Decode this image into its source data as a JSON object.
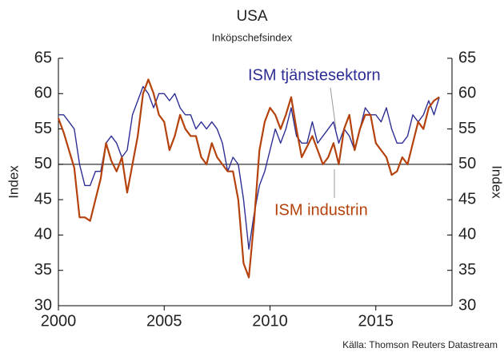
{
  "chart_data": {
    "type": "line",
    "title": "USA",
    "subtitle": "Inköpschefsindex",
    "ylabel": "Index",
    "y2label": "Index",
    "source": "Källa: Thomson Reuters Datastream",
    "x": [
      2000,
      2000.25,
      2000.5,
      2000.75,
      2001,
      2001.25,
      2001.5,
      2001.75,
      2002,
      2002.25,
      2002.5,
      2002.75,
      2003,
      2003.25,
      2003.5,
      2003.75,
      2004,
      2004.25,
      2004.5,
      2004.75,
      2005,
      2005.25,
      2005.5,
      2005.75,
      2006,
      2006.25,
      2006.5,
      2006.75,
      2007,
      2007.25,
      2007.5,
      2007.75,
      2008,
      2008.25,
      2008.5,
      2008.75,
      2009,
      2009.25,
      2009.5,
      2009.75,
      2010,
      2010.25,
      2010.5,
      2010.75,
      2011,
      2011.25,
      2011.5,
      2011.75,
      2012,
      2012.25,
      2012.5,
      2012.75,
      2013,
      2013.25,
      2013.5,
      2013.75,
      2014,
      2014.25,
      2014.5,
      2014.75,
      2015,
      2015.25,
      2015.5,
      2015.75,
      2016,
      2016.25,
      2016.5,
      2016.75,
      2017,
      2017.25,
      2017.5,
      2017.75,
      2018
    ],
    "series": [
      {
        "name": "ISM tjänstesektorn",
        "color": "#2e2e94",
        "values": [
          57,
          57,
          56,
          55,
          50,
          47,
          47,
          49,
          49,
          53,
          54,
          53,
          51,
          52,
          57,
          59,
          61,
          60,
          58,
          60,
          60,
          59,
          60,
          58,
          57,
          57,
          55,
          56,
          55,
          56,
          55,
          53,
          49,
          51,
          50,
          45,
          38,
          43,
          47,
          49,
          52,
          55,
          53,
          55,
          58,
          54,
          53,
          53,
          56,
          53,
          54,
          55,
          56,
          53,
          55,
          54,
          52,
          55,
          58,
          57,
          57,
          56,
          58,
          55,
          53,
          53,
          54,
          57,
          56,
          57,
          59,
          57,
          59.5
        ]
      },
      {
        "name": "ISM industrin",
        "color": "#b5420c",
        "values": [
          56.5,
          54.5,
          52,
          49.5,
          42.5,
          42.5,
          42,
          45,
          48,
          53,
          50.5,
          49,
          51,
          46,
          50,
          54,
          60,
          62,
          60,
          57,
          56,
          52,
          54,
          57,
          55,
          54,
          54,
          51,
          50,
          53,
          51,
          50,
          49,
          49,
          45,
          36,
          34,
          42,
          52,
          56,
          58,
          57,
          55,
          57,
          59.5,
          55,
          51,
          52.5,
          54,
          52,
          50,
          51,
          53,
          50,
          55,
          57,
          52,
          55,
          57,
          57,
          53,
          52,
          51,
          48.5,
          49,
          51,
          50,
          53,
          56,
          55,
          58,
          59,
          59.5
        ]
      }
    ],
    "xlim": [
      2000,
      2018.6
    ],
    "xticks": [
      2000,
      2005,
      2010,
      2015
    ],
    "ylim": [
      30,
      65
    ],
    "yticks": [
      30,
      35,
      40,
      45,
      50,
      55,
      60,
      65
    ],
    "y2lim": [
      30,
      65
    ],
    "y2ticks": [
      30,
      35,
      40,
      45,
      50,
      55,
      60,
      65
    ],
    "reference_line": 50
  }
}
